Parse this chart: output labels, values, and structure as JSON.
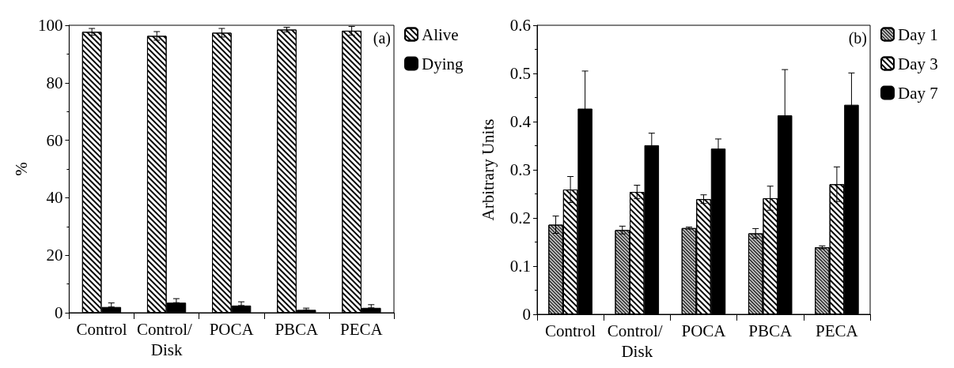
{
  "chart_data": [
    {
      "type": "bar",
      "ylabel": "%",
      "categories": [
        "Control",
        "Control/ Disk",
        "POCA",
        "PBCA",
        "PECA"
      ],
      "series": [
        {
          "name": "Alive",
          "color": "#ffffff",
          "values": [
            97.7,
            96.3,
            97.4,
            98.5,
            98.1
          ],
          "errors": [
            1.2,
            1.5,
            1.5,
            0.8,
            1.5
          ]
        },
        {
          "name": "Dying",
          "color": "#000000",
          "values": [
            2.0,
            3.5,
            2.5,
            1.0,
            1.7
          ],
          "errors": [
            [
              2.0,
              3.4
            ],
            [
              3.5,
              4.9
            ],
            [
              2.5,
              3.8
            ],
            [
              1.0,
              1.6
            ],
            [
              1.7,
              2.8
            ]
          ]
        }
      ],
      "ylim": [
        0,
        100
      ],
      "yticks": [
        0,
        20,
        40,
        60,
        80,
        100
      ],
      "grid": false,
      "legend": "right",
      "annotations": [
        "(a)"
      ]
    },
    {
      "type": "bar",
      "ylabel": "Arbitrary Units",
      "categories": [
        "Control",
        "Control/ Disk",
        "POCA",
        "PBCA",
        "PECA"
      ],
      "series": [
        {
          "name": "Day 1",
          "color": "#bdbdbd",
          "values": [
            0.186,
            0.175,
            0.179,
            0.168,
            0.139
          ],
          "errors": [
            0.018,
            0.008,
            0.002,
            0.01,
            0.003
          ]
        },
        {
          "name": "Day 3",
          "color": "#ffffff",
          "values": [
            0.259,
            0.254,
            0.239,
            0.241,
            0.27
          ],
          "errors": [
            0.027,
            0.014,
            0.009,
            0.025,
            0.036
          ]
        },
        {
          "name": "Day 7",
          "color": "#000000",
          "values": [
            0.427,
            0.351,
            0.344,
            0.413,
            0.435
          ],
          "errors": [
            0.078,
            0.025,
            0.02,
            0.095,
            0.066
          ]
        }
      ],
      "ylim": [
        0,
        0.6
      ],
      "yticks": [
        0,
        0.1,
        0.2,
        0.3,
        0.4,
        0.5,
        0.6
      ],
      "grid": false,
      "legend": "right",
      "annotations": [
        "(b)"
      ]
    }
  ]
}
